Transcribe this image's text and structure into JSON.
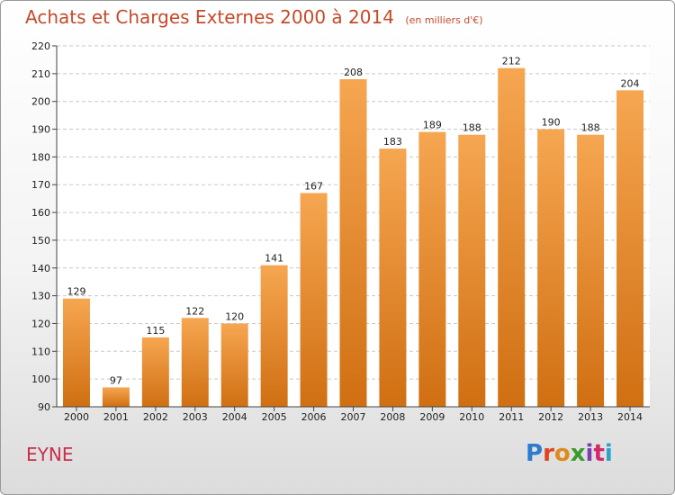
{
  "title": "Achats et Charges Externes 2000 à 2014",
  "subtitle": "(en milliers d'€)",
  "place": "EYNE",
  "logo": {
    "letters": [
      "P",
      "r",
      "o",
      "x",
      "i",
      "t",
      "i"
    ],
    "colors": [
      "#2b7bd0",
      "#e0431f",
      "#e08a1b",
      "#3b9a2f",
      "#7c3fb0",
      "#d12a6b",
      "#2aa3c7"
    ]
  },
  "colors": {
    "bar_top": "#f6a651",
    "bar_bottom": "#d06f12",
    "title": "#c44a2a",
    "axis": "#444444"
  },
  "chart_data": {
    "type": "bar",
    "categories": [
      "2000",
      "2001",
      "2002",
      "2003",
      "2004",
      "2005",
      "2006",
      "2007",
      "2008",
      "2009",
      "2010",
      "2011",
      "2012",
      "2013",
      "2014"
    ],
    "values": [
      129,
      97,
      115,
      122,
      120,
      141,
      167,
      208,
      183,
      189,
      188,
      212,
      190,
      188,
      204
    ],
    "ylim": [
      90,
      220
    ],
    "yticks": [
      90,
      100,
      110,
      120,
      130,
      140,
      150,
      160,
      170,
      180,
      190,
      200,
      210,
      220
    ],
    "grid": true,
    "data_labels": true
  }
}
